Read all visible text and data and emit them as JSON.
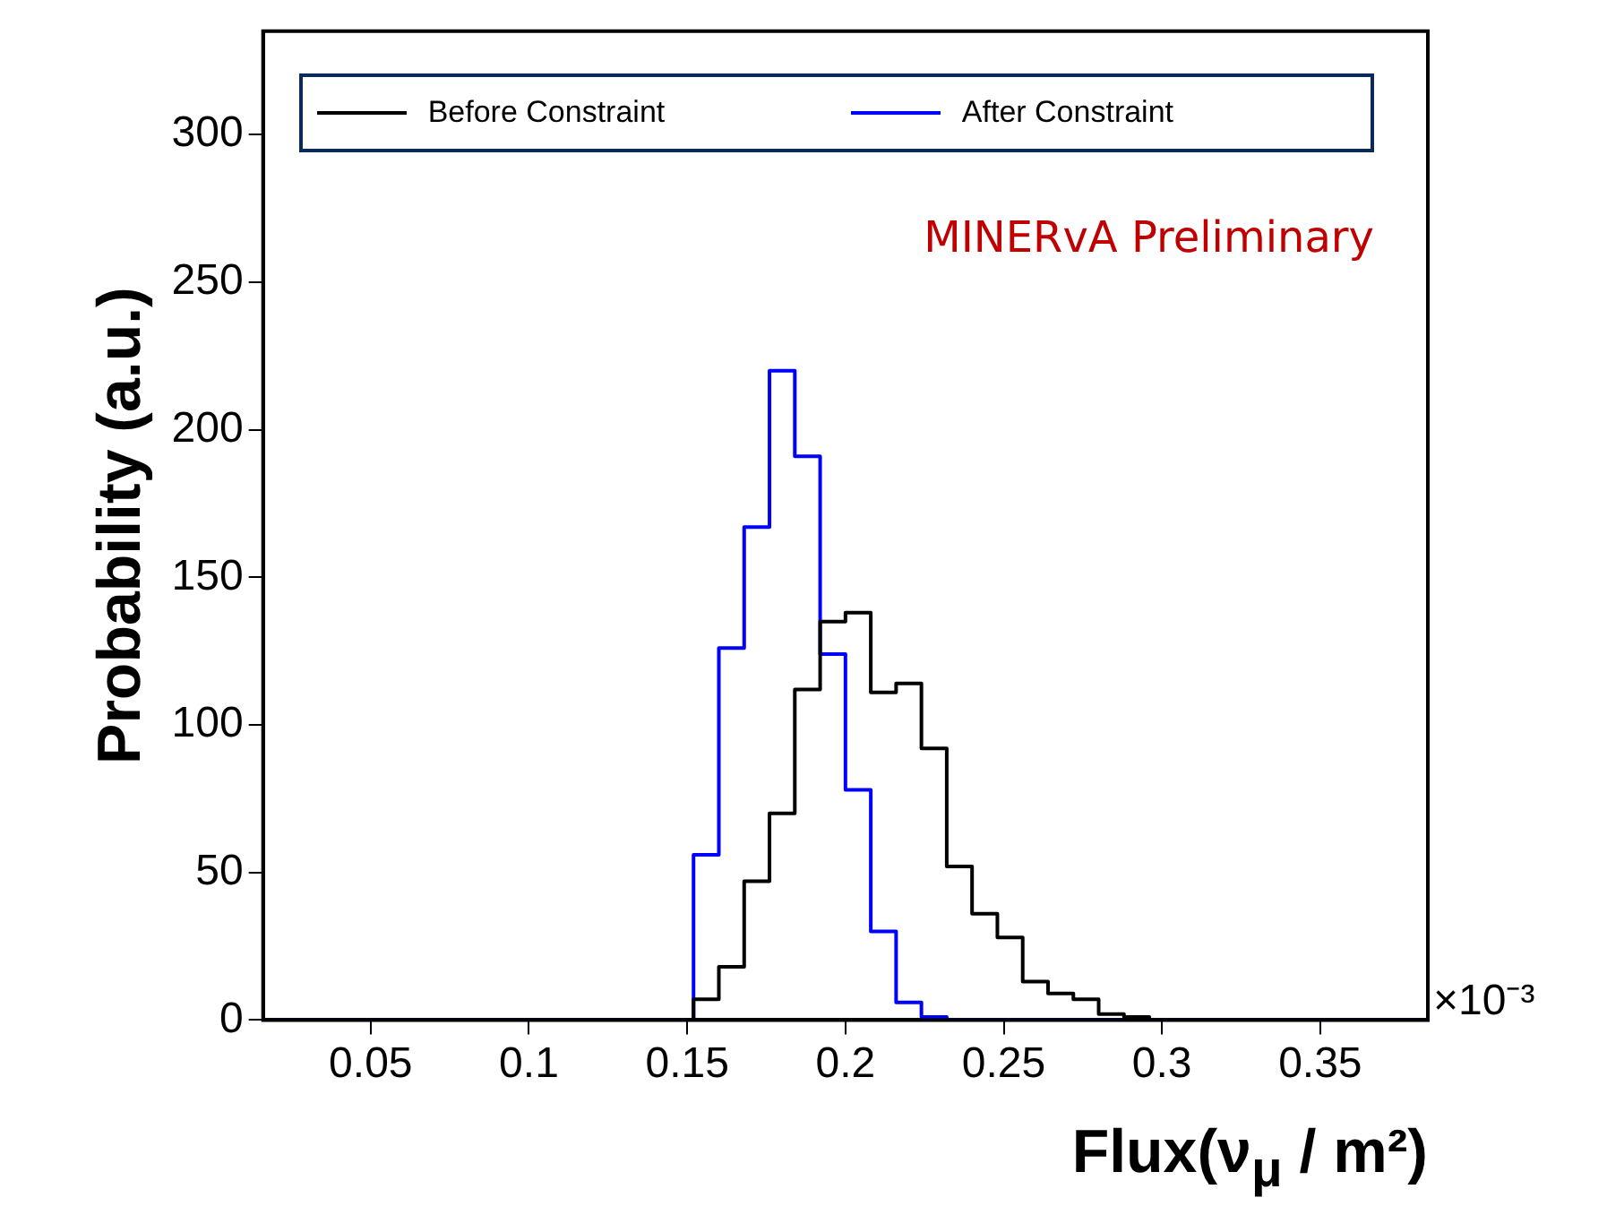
{
  "chart_data": {
    "type": "histogram",
    "xlabel": "Flux(ν$_{μ}$ / m²)",
    "ylabel": "Probability (a.u.)",
    "bins": [
      0.016,
      0.024,
      0.032,
      0.04,
      0.048,
      0.056,
      0.064,
      0.072,
      0.08,
      0.088,
      0.096,
      0.104,
      0.112,
      0.12,
      0.128,
      0.136,
      0.144,
      0.152,
      0.16,
      0.168,
      0.176,
      0.184,
      0.192,
      0.2,
      0.208,
      0.216,
      0.224,
      0.232,
      0.24,
      0.248,
      0.256,
      0.264,
      0.272,
      0.28,
      0.288,
      0.296,
      0.304,
      0.312,
      0.32,
      0.328,
      0.336,
      0.344,
      0.352,
      0.36,
      0.368,
      0.376,
      0.384
    ],
    "series": [
      {
        "name": "Before Constraint",
        "color": "#000000",
        "values": [
          0,
          0,
          0,
          0,
          0,
          0,
          0,
          0,
          0,
          0,
          0,
          0,
          0,
          0,
          0,
          0,
          0,
          7,
          18,
          47,
          70,
          112,
          135,
          138,
          111,
          114,
          92,
          52,
          36,
          28,
          13,
          9,
          7,
          2,
          1,
          0,
          0,
          0,
          0,
          0,
          0,
          0,
          0,
          0,
          0,
          0
        ]
      },
      {
        "name": "After Constraint",
        "color": "#0000ff",
        "values": [
          0,
          0,
          0,
          0,
          0,
          0,
          0,
          0,
          0,
          0,
          0,
          0,
          0,
          0,
          0,
          0,
          0,
          56,
          126,
          167,
          220,
          191,
          124,
          78,
          30,
          6,
          1,
          0,
          0,
          0,
          0,
          0,
          0,
          0,
          0,
          0,
          0,
          0,
          0,
          0,
          0,
          0,
          0,
          0,
          0,
          0
        ]
      }
    ],
    "xlim": [
      0.016,
      0.384
    ],
    "xticks": [
      0.05,
      0.1,
      0.15,
      0.2,
      0.25,
      0.3,
      0.35
    ],
    "ylim": [
      0,
      335
    ],
    "yticks": [
      0,
      50,
      100,
      150,
      200,
      250,
      300
    ],
    "grid": false,
    "legend": "top",
    "annotations": [
      "MINERvA Preliminary",
      "×10⁻³"
    ]
  }
}
